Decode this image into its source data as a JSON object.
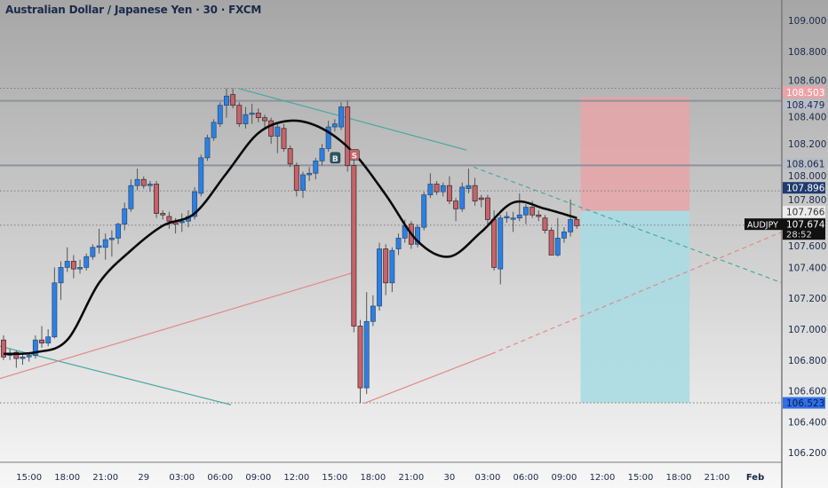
{
  "header": {
    "title": "Australian Dollar / Japanese Yen · 30 · FXCM"
  },
  "colors": {
    "bull": "#2f7fe0",
    "bear": "#c4646b",
    "ma": "#0a0a0a",
    "teal_line": "#4aa8a0",
    "red_line": "#e08a8a",
    "stop_zone": "#e8a4a8",
    "target_zone": "#a9dbe2"
  },
  "chart_data": {
    "type": "candlestick",
    "symbol": "AUDJPY",
    "interval": "30",
    "ylim": [
      106.1,
      109.1
    ],
    "grid": false,
    "y_ticks": [
      "109.000",
      "108.800",
      "108.600",
      "108.400",
      "108.200",
      "108.000",
      "107.800",
      "107.600",
      "107.400",
      "107.200",
      "107.000",
      "106.800",
      "106.600",
      "106.400",
      "106.200"
    ],
    "x_ticks": [
      "15:00",
      "18:00",
      "21:00",
      "29",
      "03:00",
      "06:00",
      "09:00",
      "12:00",
      "15:00",
      "18:00",
      "21:00",
      "30",
      "03:00",
      "06:00",
      "09:00",
      "12:00",
      "15:00",
      "18:00",
      "21:00",
      "Feb"
    ],
    "candles_ohlc": [
      [
        106.93,
        106.96,
        106.8,
        106.82
      ],
      [
        106.83,
        106.87,
        106.8,
        106.84
      ],
      [
        106.85,
        106.86,
        106.75,
        106.81
      ],
      [
        106.81,
        106.84,
        106.77,
        106.82
      ],
      [
        106.82,
        106.85,
        106.79,
        106.83
      ],
      [
        106.83,
        106.96,
        106.81,
        106.93
      ],
      [
        106.93,
        107.02,
        106.88,
        106.91
      ],
      [
        106.91,
        107.0,
        106.89,
        106.95
      ],
      [
        106.95,
        107.4,
        106.94,
        107.3
      ],
      [
        107.3,
        107.44,
        107.19,
        107.4
      ],
      [
        107.4,
        107.53,
        107.37,
        107.44
      ],
      [
        107.44,
        107.48,
        107.33,
        107.39
      ],
      [
        107.39,
        107.45,
        107.36,
        107.4
      ],
      [
        107.4,
        107.49,
        107.38,
        107.47
      ],
      [
        107.47,
        107.55,
        107.45,
        107.53
      ],
      [
        107.53,
        107.65,
        107.49,
        107.54
      ],
      [
        107.53,
        107.62,
        107.45,
        107.58
      ],
      [
        107.58,
        107.64,
        107.47,
        107.59
      ],
      [
        107.59,
        107.69,
        107.55,
        107.68
      ],
      [
        107.68,
        107.82,
        107.64,
        107.78
      ],
      [
        107.78,
        107.97,
        107.76,
        107.93
      ],
      [
        107.93,
        108.04,
        107.9,
        107.97
      ],
      [
        107.97,
        107.99,
        107.91,
        107.93
      ],
      [
        107.93,
        107.96,
        107.89,
        107.94
      ],
      [
        107.94,
        107.96,
        107.72,
        107.75
      ],
      [
        107.75,
        107.77,
        107.71,
        107.74
      ],
      [
        107.73,
        107.76,
        107.65,
        107.7
      ],
      [
        107.7,
        107.72,
        107.62,
        107.68
      ],
      [
        107.69,
        107.75,
        107.63,
        107.7
      ],
      [
        107.7,
        107.77,
        107.66,
        107.73
      ],
      [
        107.73,
        107.92,
        107.71,
        107.89
      ],
      [
        107.88,
        108.13,
        107.86,
        108.11
      ],
      [
        108.11,
        108.26,
        108.09,
        108.24
      ],
      [
        108.24,
        108.36,
        108.22,
        108.34
      ],
      [
        108.33,
        108.47,
        108.31,
        108.45
      ],
      [
        108.45,
        108.56,
        108.37,
        108.51
      ],
      [
        108.52,
        108.56,
        108.43,
        108.45
      ],
      [
        108.45,
        108.47,
        108.31,
        108.33
      ],
      [
        108.33,
        108.44,
        108.3,
        108.39
      ],
      [
        108.4,
        108.46,
        108.33,
        108.4
      ],
      [
        108.4,
        108.43,
        108.34,
        108.37
      ],
      [
        108.37,
        108.39,
        108.3,
        108.35
      ],
      [
        108.35,
        108.37,
        108.2,
        108.25
      ],
      [
        108.25,
        108.33,
        108.14,
        108.31
      ],
      [
        108.3,
        108.33,
        108.15,
        108.17
      ],
      [
        108.17,
        108.19,
        108.05,
        108.07
      ],
      [
        108.06,
        108.08,
        107.86,
        107.9
      ],
      [
        107.9,
        108.02,
        107.85,
        108.0
      ],
      [
        108.0,
        108.05,
        107.96,
        108.01
      ],
      [
        108.01,
        108.11,
        107.97,
        108.09
      ],
      [
        108.09,
        108.2,
        108.06,
        108.17
      ],
      [
        108.17,
        108.35,
        108.15,
        108.31
      ],
      [
        108.31,
        108.36,
        108.28,
        108.33
      ],
      [
        108.31,
        108.47,
        108.29,
        108.44
      ],
      [
        108.44,
        108.48,
        108.02,
        108.06
      ],
      [
        108.06,
        108.1,
        106.98,
        107.02
      ],
      [
        107.02,
        107.06,
        106.52,
        106.62
      ],
      [
        106.62,
        107.24,
        106.58,
        107.05
      ],
      [
        107.05,
        107.22,
        107.02,
        107.15
      ],
      [
        107.15,
        107.56,
        107.12,
        107.52
      ],
      [
        107.52,
        107.55,
        107.22,
        107.3
      ],
      [
        107.3,
        107.53,
        107.24,
        107.51
      ],
      [
        107.52,
        107.62,
        107.48,
        107.59
      ],
      [
        107.59,
        107.71,
        107.56,
        107.67
      ],
      [
        107.68,
        107.7,
        107.52,
        107.55
      ],
      [
        107.55,
        107.68,
        107.53,
        107.66
      ],
      [
        107.66,
        107.89,
        107.64,
        107.87
      ],
      [
        107.87,
        108.01,
        107.85,
        107.94
      ],
      [
        107.94,
        107.96,
        107.87,
        107.89
      ],
      [
        107.89,
        107.95,
        107.86,
        107.93
      ],
      [
        107.93,
        107.99,
        107.81,
        107.83
      ],
      [
        107.83,
        107.85,
        107.7,
        107.78
      ],
      [
        107.78,
        107.95,
        107.76,
        107.92
      ],
      [
        107.91,
        108.04,
        107.88,
        107.93
      ],
      [
        107.93,
        107.98,
        107.8,
        107.83
      ],
      [
        107.85,
        107.87,
        107.79,
        107.84
      ],
      [
        107.85,
        107.87,
        107.66,
        107.71
      ],
      [
        107.71,
        107.77,
        107.38,
        107.4
      ],
      [
        107.39,
        107.74,
        107.29,
        107.72
      ],
      [
        107.72,
        107.76,
        107.69,
        107.73
      ],
      [
        107.72,
        107.76,
        107.63,
        107.72
      ],
      [
        107.72,
        107.88,
        107.7,
        107.74
      ],
      [
        107.74,
        107.81,
        107.68,
        107.79
      ],
      [
        107.79,
        107.83,
        107.72,
        107.74
      ],
      [
        107.74,
        107.77,
        107.7,
        107.73
      ],
      [
        107.72,
        107.74,
        107.62,
        107.64
      ],
      [
        107.64,
        107.66,
        107.48,
        107.48
      ],
      [
        107.48,
        107.72,
        107.47,
        107.59
      ],
      [
        107.59,
        107.66,
        107.56,
        107.63
      ],
      [
        107.63,
        107.84,
        107.6,
        107.71
      ],
      [
        107.71,
        107.72,
        107.65,
        107.67
      ]
    ],
    "moving_average": {
      "every_n_bars": 5,
      "values": [
        106.84,
        106.85,
        106.93,
        107.3,
        107.51,
        107.67,
        107.75,
        108.01,
        108.27,
        108.35,
        108.3,
        108.14,
        107.87,
        107.57,
        107.47,
        107.63,
        107.82,
        107.78,
        107.72
      ]
    },
    "markers": [
      {
        "label": "B",
        "bar": 52,
        "price": 108.11,
        "color": "#2c5a66"
      },
      {
        "label": "S",
        "bar": 55,
        "price": 108.13,
        "color": "#c4646b"
      }
    ],
    "horizontal_levels": [
      {
        "price": 108.56,
        "style": "dotted"
      },
      {
        "price": 108.479,
        "style": "solid"
      },
      {
        "price": 108.061,
        "style": "solid"
      },
      {
        "price": 107.896,
        "style": "dotted"
      },
      {
        "price": 107.674,
        "style": "dotted"
      },
      {
        "price": 106.523,
        "style": "dotted"
      }
    ],
    "trendlines": [
      {
        "from": [
          36.8,
          108.56
        ],
        "to": [
          72.7,
          108.16
        ],
        "color": "teal",
        "dashed": false
      },
      {
        "from": [
          -0.6,
          106.89
        ],
        "to": [
          35.7,
          106.51
        ],
        "color": "teal",
        "dashed": false
      },
      {
        "from": [
          -0.6,
          106.68
        ],
        "to": [
          55.2,
          107.37
        ],
        "color": "red",
        "dashed": false
      },
      {
        "from": [
          56.6,
          106.52
        ],
        "to": [
          76.6,
          106.84
        ],
        "color": "red",
        "dashed": false
      },
      {
        "from": [
          76.6,
          106.84
        ],
        "to": [
          122.2,
          107.63
        ],
        "color": "red",
        "dashed": true
      },
      {
        "from": [
          73.8,
          108.05
        ],
        "to": [
          122.2,
          107.3
        ],
        "color": "teal",
        "dashed": true
      }
    ],
    "position": {
      "type": "short",
      "from_bar": 90.6,
      "to_bar": 107.7,
      "stop": 108.503,
      "entry": 107.766,
      "target": 106.523
    },
    "price_tags": [
      {
        "text": "108.503",
        "price": 108.503,
        "bg": "#eea2a7",
        "fg": "#ffffff"
      },
      {
        "text": "108.479",
        "price": 108.479,
        "bg": "#b7bcc7",
        "fg": "#1b2a4a"
      },
      {
        "text": "108.061",
        "price": 108.061,
        "bg": "#b7bcc7",
        "fg": "#1b2a4a"
      },
      {
        "text": "107.896",
        "price": 107.896,
        "bg": "#1f3b6f",
        "fg": "#ffffff"
      },
      {
        "text": "107.766",
        "price": 107.766,
        "bg": "#ececec",
        "fg": "#333333"
      },
      {
        "text": "106.523",
        "price": 106.523,
        "bg": "#2f6fe8",
        "fg": "#0d1b3f"
      }
    ],
    "last_price": {
      "symbol": "AUDJPY",
      "price": "107.674",
      "countdown": "28:52"
    }
  }
}
